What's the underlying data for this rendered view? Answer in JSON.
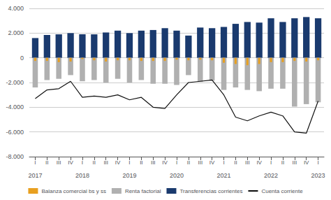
{
  "chart_data": {
    "type": "bar",
    "categories": [
      "I",
      "II",
      "III",
      "IV",
      "I",
      "II",
      "III",
      "IV",
      "I",
      "II",
      "III",
      "IV",
      "I",
      "II",
      "III",
      "IV",
      "I",
      "II",
      "III",
      "IV",
      "I",
      "II",
      "III",
      "IV",
      "I"
    ],
    "years": [
      "2017",
      "2017",
      "2017",
      "2017",
      "2018",
      "2018",
      "2018",
      "2018",
      "2019",
      "2019",
      "2019",
      "2019",
      "2020",
      "2020",
      "2020",
      "2020",
      "2021",
      "2021",
      "2021",
      "2021",
      "2022",
      "2022",
      "2022",
      "2022",
      "2023"
    ],
    "series": [
      {
        "name": "Balanza comercial bs y ss",
        "type": "bar",
        "color": "#E8A020",
        "values": [
          -250,
          -250,
          -350,
          -300,
          -100,
          -200,
          -300,
          -200,
          -200,
          -250,
          -250,
          -250,
          -150,
          -200,
          -150,
          -200,
          -400,
          -500,
          -600,
          -500,
          -350,
          -350,
          -250,
          -300,
          -200
        ]
      },
      {
        "name": "Renta factorial",
        "type": "bar",
        "color": "#B0B0B0",
        "values": [
          -2400,
          -1800,
          -1700,
          -1400,
          -1900,
          -1800,
          -2000,
          -1700,
          -2000,
          -1800,
          -2100,
          -2100,
          -2200,
          -1400,
          -1950,
          -1850,
          -2600,
          -2400,
          -2600,
          -2700,
          -2500,
          -2500,
          -3950,
          -3750,
          -3600
        ]
      },
      {
        "name": "Transferencias corrientes",
        "type": "bar",
        "color": "#1A3A6E",
        "values": [
          1600,
          1850,
          1900,
          2000,
          1900,
          1900,
          2050,
          2200,
          2000,
          2200,
          2250,
          2400,
          2200,
          1800,
          2450,
          2400,
          2500,
          2750,
          2900,
          2850,
          3200,
          2900,
          3200,
          3300,
          3200
        ]
      },
      {
        "name": "Cuenta corriente",
        "type": "line",
        "color": "#111111",
        "values": [
          -3300,
          -2600,
          -2500,
          -1900,
          -3200,
          -3100,
          -3200,
          -3000,
          -3400,
          -3200,
          -4000,
          -4100,
          -3000,
          -2000,
          -1900,
          -1800,
          -3000,
          -4800,
          -5100,
          -4700,
          -4400,
          -4700,
          -6000,
          -6100,
          -3500
        ]
      }
    ],
    "ylim": [
      -8000,
      4000
    ],
    "yticks": [
      {
        "value": -8000,
        "label": "-8.000"
      },
      {
        "value": -6000,
        "label": "-6.000"
      },
      {
        "value": -4000,
        "label": "-4.000"
      },
      {
        "value": -2000,
        "label": "-2.000"
      },
      0,
      {
        "value": 2000,
        "label": "2.000"
      },
      {
        "value": 4000,
        "label": "4.000"
      }
    ],
    "grid": true,
    "legend": "bottom"
  }
}
